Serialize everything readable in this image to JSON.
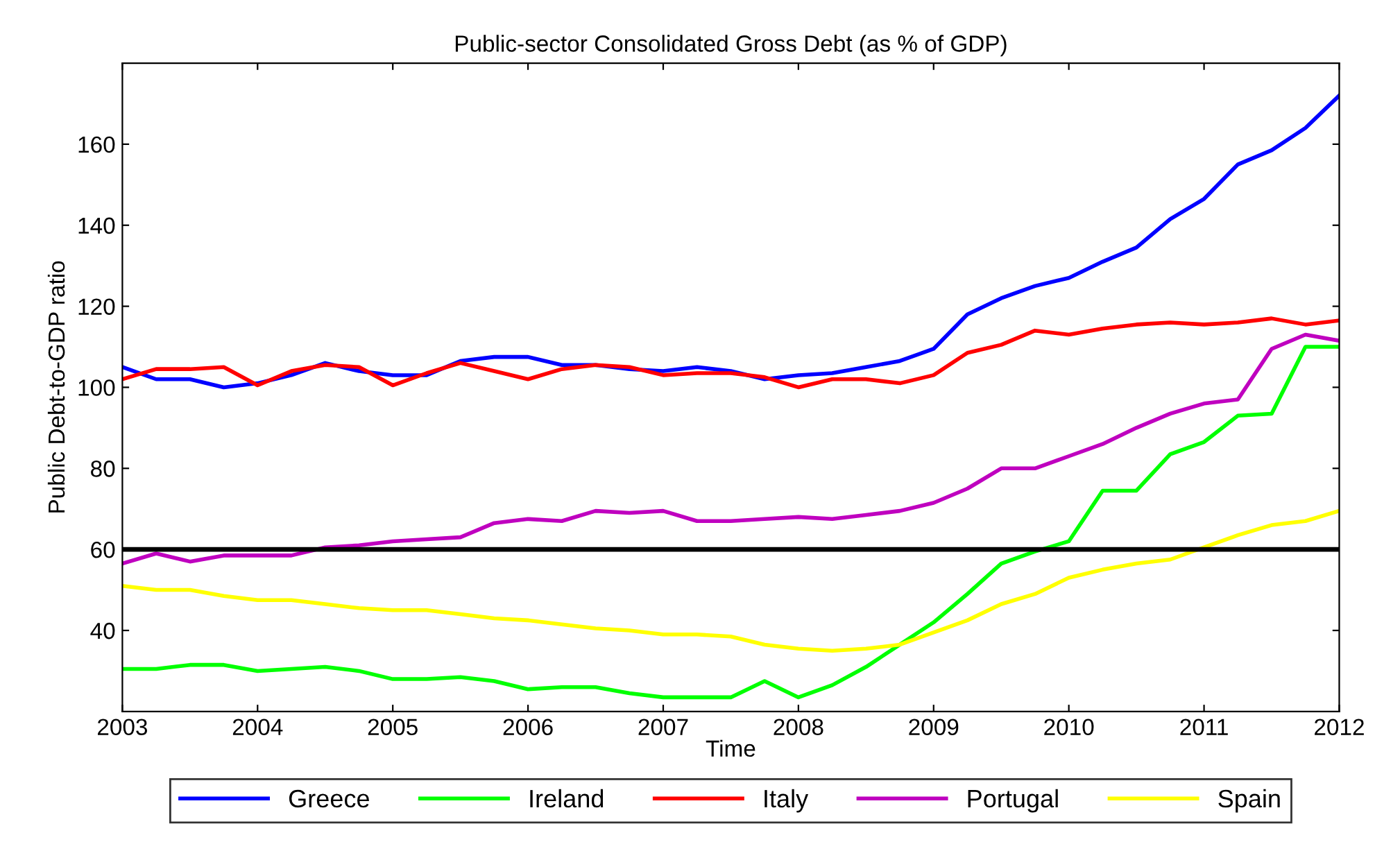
{
  "chart_data": {
    "type": "line",
    "title": "Public-sector Consolidated Gross Debt (as % of GDP)",
    "xlabel": "Time",
    "ylabel": "Public Debt-to-GDP ratio",
    "x": [
      2003,
      2003.25,
      2003.5,
      2003.75,
      2004,
      2004.25,
      2004.5,
      2004.75,
      2005,
      2005.25,
      2005.5,
      2005.75,
      2006,
      2006.25,
      2006.5,
      2006.75,
      2007,
      2007.25,
      2007.5,
      2007.75,
      2008,
      2008.25,
      2008.5,
      2008.75,
      2009,
      2009.25,
      2009.5,
      2009.75,
      2010,
      2010.25,
      2010.5,
      2010.75,
      2011,
      2011.25,
      2011.5,
      2011.75,
      2012
    ],
    "series": [
      {
        "name": "Greece",
        "color": "#0000ff",
        "values": [
          105,
          102,
          102,
          100,
          101,
          103,
          106,
          104,
          103,
          103,
          106.5,
          107.5,
          107.5,
          105.5,
          105.5,
          104.5,
          104,
          105,
          104,
          102,
          103,
          103.5,
          105,
          106.5,
          109.5,
          118,
          122,
          125,
          127,
          131,
          134.5,
          141.5,
          146.5,
          155,
          158.5,
          164,
          172
        ]
      },
      {
        "name": "Ireland",
        "color": "#00ff00",
        "values": [
          30.5,
          30.5,
          31.5,
          31.5,
          30,
          30.5,
          31,
          30,
          28,
          28,
          28.5,
          27.5,
          25.5,
          26,
          26,
          24.5,
          23.5,
          23.5,
          23.5,
          27.5,
          23.5,
          26.5,
          31,
          36.5,
          42,
          49,
          56.5,
          59.5,
          62,
          74.5,
          74.5,
          83.5,
          86.5,
          93,
          93.5,
          110,
          110
        ]
      },
      {
        "name": "Italy",
        "color": "#ff0000",
        "values": [
          102,
          104.5,
          104.5,
          105,
          100.5,
          104,
          105.5,
          105,
          100.5,
          103.5,
          106,
          104,
          102,
          104.5,
          105.5,
          105,
          103,
          103.5,
          103.5,
          102.5,
          100,
          102,
          102,
          101,
          103,
          108.5,
          110.5,
          114,
          113,
          114.5,
          115.5,
          116,
          115.5,
          116,
          117,
          115.5,
          116.5
        ]
      },
      {
        "name": "Portugal",
        "color": "#bf00bf",
        "values": [
          56.5,
          59,
          57,
          58.5,
          58.5,
          58.5,
          60.5,
          61,
          62,
          62.5,
          63,
          66.5,
          67.5,
          67,
          69.5,
          69,
          69.5,
          67,
          67,
          67.5,
          68,
          67.5,
          68.5,
          69.5,
          71.5,
          75,
          80,
          80,
          83,
          86,
          90,
          93.5,
          96,
          97,
          109.5,
          113,
          111.5
        ]
      },
      {
        "name": "Spain",
        "color": "#ffff00",
        "values": [
          51,
          50,
          50,
          48.5,
          47.5,
          47.5,
          46.5,
          45.5,
          45,
          45,
          44,
          43,
          42.5,
          41.5,
          40.5,
          40,
          39,
          39,
          38.5,
          36.5,
          35.5,
          35,
          35.5,
          36.5,
          39.5,
          42.5,
          46.5,
          49,
          53,
          55,
          56.5,
          57.5,
          60.5,
          63.5,
          66,
          67,
          69.5
        ]
      }
    ],
    "ref_lines": [
      {
        "axis": "y",
        "value": 60,
        "color": "#000000"
      }
    ],
    "xlim": [
      2003,
      2012
    ],
    "xticks": [
      2003,
      2004,
      2005,
      2006,
      2007,
      2008,
      2009,
      2010,
      2011,
      2012
    ],
    "ylim": [
      20,
      180
    ],
    "yticks": [
      40,
      60,
      80,
      100,
      120,
      140,
      160
    ],
    "legend": "bottom",
    "grid": false,
    "marker": "none",
    "line_style": "solid"
  }
}
